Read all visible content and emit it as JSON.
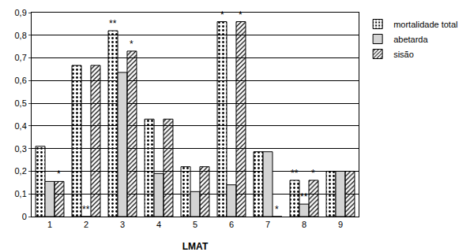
{
  "chart_data": {
    "type": "bar",
    "x_label": "LMAT",
    "categories": [
      "1",
      "2",
      "3",
      "4",
      "5",
      "6",
      "7",
      "8",
      "9"
    ],
    "series": [
      {
        "name": "mortalidade total",
        "color": "#ffffff",
        "marker": "dots",
        "values": [
          0.31,
          0.667,
          0.82,
          0.43,
          0.22,
          0.86,
          0.286,
          0.16,
          0.2
        ]
      },
      {
        "name": "abetarda",
        "color": "#d4d4d4",
        "marker": "solid",
        "values": [
          0.155,
          0,
          0.636,
          0.19,
          0.11,
          0.14,
          0.286,
          0.055,
          0.2
        ]
      },
      {
        "name": "sisão",
        "color": "#ffffff",
        "marker": "hatch",
        "values": [
          0.155,
          0.667,
          0.73,
          0.43,
          0.22,
          0.86,
          0,
          0.16,
          0.2
        ]
      }
    ],
    "ylim": [
      0,
      0.9
    ],
    "yticks": [
      0,
      {
        "value": 0.1,
        "label": "0,1"
      },
      {
        "value": 0.2,
        "label": "0,2"
      },
      {
        "value": 0.3,
        "label": "0,3"
      },
      {
        "value": 0.4,
        "label": "0,4"
      },
      {
        "value": 0.5,
        "label": "0,5"
      },
      {
        "value": 0.6,
        "label": "0,6"
      },
      {
        "value": 0.7,
        "label": "0,7"
      },
      {
        "value": 0.8,
        "label": "0,8"
      },
      {
        "value": 0.9,
        "label": "0,9"
      }
    ],
    "grid": true,
    "legend": "upper right",
    "annotations": [
      {
        "text": "*",
        "category": "1",
        "series": "sisão"
      },
      {
        "text": "**",
        "category": "2",
        "series": "abetarda"
      },
      {
        "text": "**",
        "category": "3",
        "series": "mortalidade total"
      },
      {
        "text": "*",
        "category": "3",
        "series": "sisão"
      },
      {
        "text": "*",
        "category": "6",
        "series": "mortalidade total"
      },
      {
        "text": "*",
        "category": "6",
        "series": "sisão"
      },
      {
        "text": "*",
        "category": "7",
        "series": "sisão"
      },
      {
        "text": "**",
        "category": "8",
        "series": "mortalidade total"
      },
      {
        "text": "**",
        "category": "8",
        "series": "abetarda"
      },
      {
        "text": "*",
        "category": "8",
        "series": "sisão"
      }
    ]
  }
}
